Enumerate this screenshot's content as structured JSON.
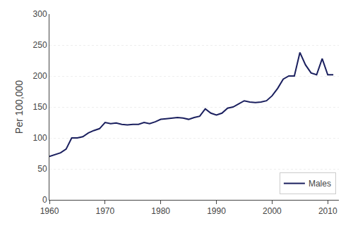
{
  "chart_data": {
    "type": "line",
    "x": [
      1960,
      1961,
      1962,
      1963,
      1964,
      1965,
      1966,
      1967,
      1968,
      1969,
      1970,
      1971,
      1972,
      1973,
      1974,
      1975,
      1976,
      1977,
      1978,
      1979,
      1980,
      1981,
      1982,
      1983,
      1984,
      1985,
      1986,
      1987,
      1988,
      1989,
      1990,
      1991,
      1992,
      1993,
      1994,
      1995,
      1996,
      1997,
      1998,
      1999,
      2000,
      2001,
      2002,
      2003,
      2004,
      2005,
      2006,
      2007,
      2008,
      2009,
      2010,
      2011
    ],
    "series": [
      {
        "name": "Males",
        "color": "#1a1f5e",
        "values": [
          70,
          73,
          76,
          82,
          100,
          100,
          102,
          108,
          112,
          115,
          125,
          123,
          124,
          122,
          121,
          122,
          122,
          125,
          123,
          126,
          130,
          131,
          132,
          133,
          132,
          130,
          133,
          135,
          147,
          140,
          137,
          140,
          148,
          150,
          155,
          160,
          158,
          157,
          158,
          160,
          168,
          180,
          195,
          200,
          200,
          238,
          218,
          205,
          202,
          228,
          202,
          202
        ]
      }
    ],
    "ylabel": "Per 100,000",
    "xlim": [
      1960,
      2012
    ],
    "xticks": [
      1960,
      1970,
      1980,
      1990,
      2000,
      2010
    ],
    "ylim": [
      0,
      300
    ],
    "yticks": [
      0,
      50,
      100,
      150,
      200,
      250,
      300
    ],
    "grid": "y",
    "legend": "lower right"
  }
}
